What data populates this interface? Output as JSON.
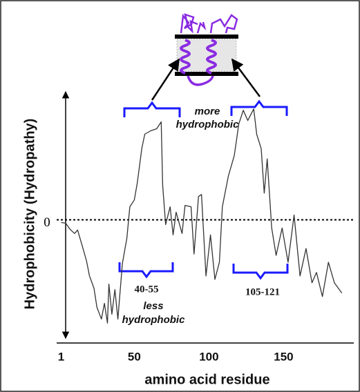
{
  "chart_data": {
    "type": "line",
    "x_label": "amino acid residue",
    "y_label": "Hydrophobicity (Hydropathy)",
    "x": [
      1,
      4,
      7,
      10,
      12,
      15,
      18,
      20,
      23,
      25,
      28,
      30,
      32,
      33,
      35,
      37,
      39,
      42,
      45,
      47,
      50,
      52,
      55,
      57,
      61,
      65,
      68,
      69,
      71,
      74,
      76,
      78,
      82,
      84,
      88,
      90,
      93,
      95,
      98,
      101,
      104,
      107,
      109,
      113,
      117,
      120,
      123,
      126,
      130,
      132,
      135,
      137,
      139,
      142,
      145,
      149,
      153,
      157,
      161,
      165,
      169,
      172,
      176,
      180,
      184,
      189
    ],
    "series": [
      {
        "color": "#333333",
        "values": [
          -0.04,
          -0.05,
          -0.14,
          -0.2,
          -0.15,
          -0.37,
          -0.6,
          -0.82,
          -1.0,
          -1.28,
          -1.45,
          -1.22,
          -1.51,
          -0.94,
          -1.38,
          -1.02,
          -1.45,
          -0.64,
          -0.27,
          0.19,
          0.29,
          0.54,
          1.04,
          1.25,
          1.3,
          1.33,
          1.43,
          0.51,
          -0.07,
          0.19,
          -0.22,
          0.11,
          -0.2,
          0.21,
          0.19,
          -0.5,
          0.34,
          0.37,
          -0.82,
          -0.22,
          -0.87,
          -0.62,
          0.19,
          0.64,
          0.94,
          1.4,
          1.6,
          1.45,
          1.62,
          1.25,
          1.04,
          0.39,
          0.89,
          -0.12,
          -0.52,
          -0.12,
          -0.62,
          0.07,
          -0.82,
          -0.42,
          -0.92,
          -0.77,
          -1.12,
          -0.62,
          -0.92,
          -1.07
        ]
      }
    ],
    "xlim": [
      -2,
      197
    ],
    "xticks": [
      1,
      50,
      100,
      150
    ],
    "ylim": [
      -1.8,
      1.9
    ],
    "yticks": [
      0
    ],
    "annotations": {
      "more_hydrophobic": [
        "more",
        "hydrophobic"
      ],
      "less_hydrophobic": [
        "less",
        "hydrophobic"
      ],
      "left_range": "40-55",
      "right_range": "105-121"
    }
  }
}
